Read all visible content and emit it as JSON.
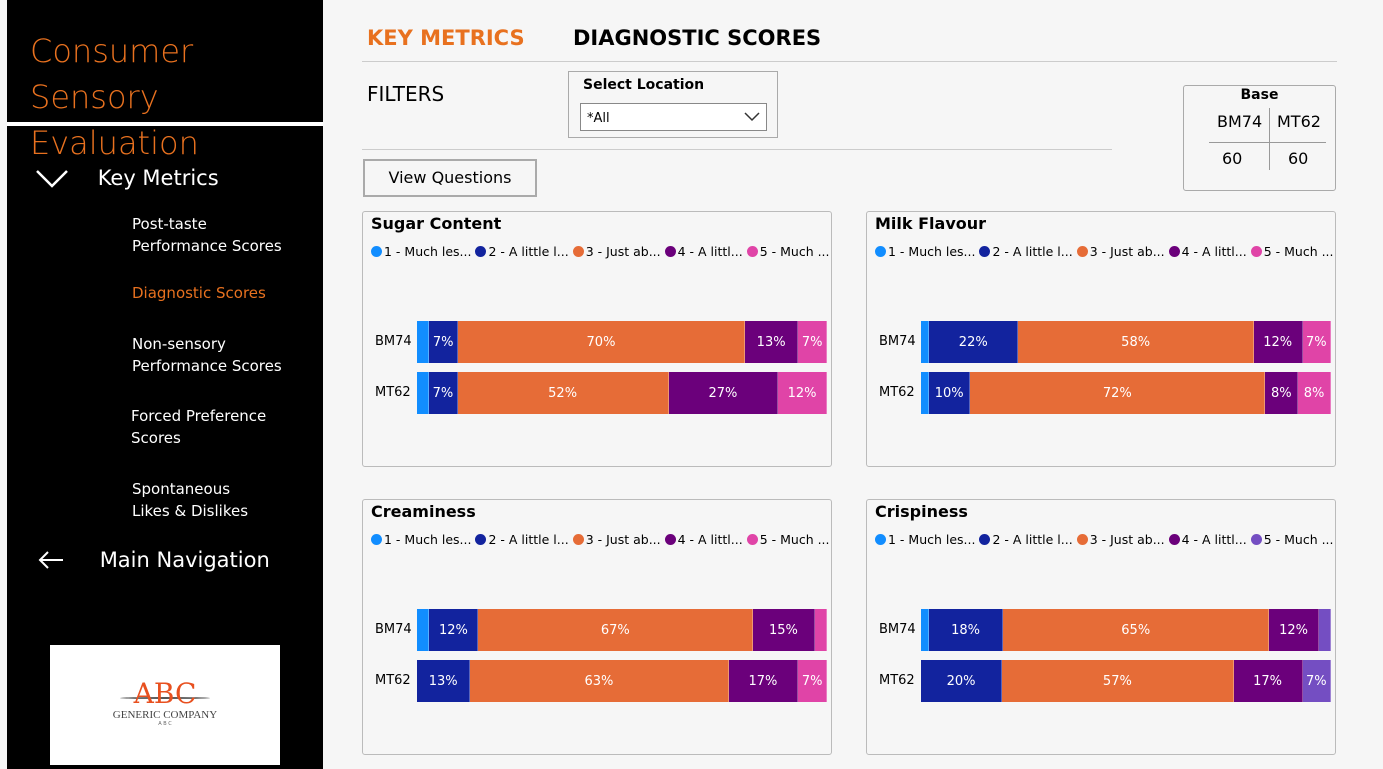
{
  "sidebar": {
    "title_line1": "Consumer Sensory",
    "title_line2": "Evaluation",
    "section": "Key Metrics",
    "items": [
      {
        "l1": "Post-taste",
        "l2": "Performance Scores"
      },
      {
        "l1": "Diagnostic Scores",
        "l2": ""
      },
      {
        "l1": "Non-sensory",
        "l2": "Performance Scores"
      },
      {
        "l1": "Forced Preference",
        "l2": "Scores"
      },
      {
        "l1": "Spontaneous",
        "l2": "Likes & Dislikes"
      }
    ],
    "active_item": 1,
    "main_nav": "Main Navigation",
    "logo": {
      "big": "ABC",
      "name": "GENERIC COMPANY",
      "small": "A B C"
    }
  },
  "tabs": [
    {
      "label": "KEY METRICS",
      "color": "#e8711f"
    },
    {
      "label": "DIAGNOSTIC SCORES",
      "color": "#000000"
    }
  ],
  "filters": {
    "label": "FILTERS",
    "location_label": "Select Location",
    "location_value": "*All"
  },
  "view_questions": "View Questions",
  "base": {
    "title": "Base",
    "headers": [
      "BM74",
      "MT62"
    ],
    "values": [
      "60",
      "60"
    ]
  },
  "chart_data": [
    {
      "type": "stacked-bar-100",
      "title": "Sugar Content",
      "legend": [
        "1 - Much les...",
        "2 - A little l...",
        "3 - Just ab...",
        "4 - A littl...",
        "5 - Much ..."
      ],
      "colors": [
        "#118dff",
        "#12239e",
        "#e66c37",
        "#6b007b",
        "#e044a7"
      ],
      "categories": [
        "BM74",
        "MT62"
      ],
      "values": [
        [
          3,
          7,
          70,
          13,
          7
        ],
        [
          3,
          7,
          52,
          27,
          12
        ]
      ],
      "labels": [
        [
          "",
          "7%",
          "70%",
          "13%",
          "7%"
        ],
        [
          "",
          "7%",
          "52%",
          "27%",
          "12%"
        ]
      ]
    },
    {
      "type": "stacked-bar-100",
      "title": "Milk Flavour",
      "legend": [
        "1 - Much les...",
        "2 - A little l...",
        "3 - Just ab...",
        "4 - A littl...",
        "5 - Much ..."
      ],
      "colors": [
        "#118dff",
        "#12239e",
        "#e66c37",
        "#6b007b",
        "#e044a7"
      ],
      "categories": [
        "BM74",
        "MT62"
      ],
      "values": [
        [
          2,
          22,
          58,
          12,
          7
        ],
        [
          2,
          10,
          72,
          8,
          8
        ]
      ],
      "labels": [
        [
          "",
          "22%",
          "58%",
          "12%",
          "7%"
        ],
        [
          "",
          "10%",
          "72%",
          "8%",
          "8%"
        ]
      ]
    },
    {
      "type": "stacked-bar-100",
      "title": "Creaminess",
      "legend": [
        "1 - Much les...",
        "2 - A little l...",
        "3 - Just ab...",
        "4 - A littl...",
        "5 - Much ..."
      ],
      "colors": [
        "#118dff",
        "#12239e",
        "#e66c37",
        "#6b007b",
        "#e044a7"
      ],
      "categories": [
        "BM74",
        "MT62"
      ],
      "values": [
        [
          3,
          12,
          67,
          15,
          3
        ],
        [
          0,
          13,
          63,
          17,
          7
        ]
      ],
      "labels": [
        [
          "",
          "12%",
          "67%",
          "15%",
          ""
        ],
        [
          "",
          "13%",
          "63%",
          "17%",
          "7%"
        ]
      ]
    },
    {
      "type": "stacked-bar-100",
      "title": "Crispiness",
      "legend": [
        "1 - Much les...",
        "2 - A little l...",
        "3 - Just ab...",
        "4 - A littl...",
        "5 - Much ..."
      ],
      "colors": [
        "#118dff",
        "#12239e",
        "#e66c37",
        "#6b007b",
        "#744ec2"
      ],
      "categories": [
        "BM74",
        "MT62"
      ],
      "values": [
        [
          2,
          18,
          65,
          12,
          3
        ],
        [
          0,
          20,
          57,
          17,
          7
        ]
      ],
      "labels": [
        [
          "",
          "18%",
          "65%",
          "12%",
          ""
        ],
        [
          "",
          "20%",
          "57%",
          "17%",
          "7%"
        ]
      ]
    }
  ]
}
